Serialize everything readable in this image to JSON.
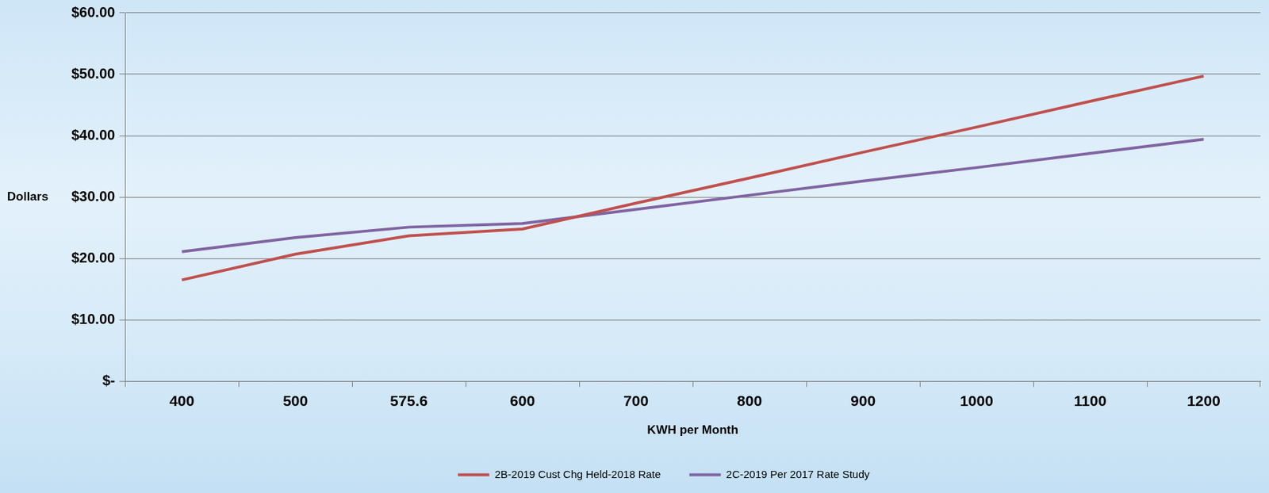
{
  "chart_data": {
    "type": "line",
    "x_label": "KWH per Month",
    "y_label": "Dollars",
    "categories": [
      "400",
      "500",
      "575.6",
      "600",
      "700",
      "800",
      "900",
      "1000",
      "1100",
      "1200"
    ],
    "series": [
      {
        "name": "2B-2019 Cust Chg Held-2018 Rate",
        "color": "#c0504d",
        "values": [
          16.5,
          20.7,
          23.7,
          24.8,
          29.0,
          33.1,
          37.3,
          41.4,
          45.6,
          49.7
        ]
      },
      {
        "name": "2C-2019 Per 2017 Rate Study",
        "color": "#8064a2",
        "values": [
          21.1,
          23.4,
          25.1,
          25.7,
          28.0,
          30.3,
          32.6,
          34.8,
          37.1,
          39.4
        ]
      }
    ],
    "ylim": [
      0,
      60
    ],
    "yticks": [
      {
        "value": 0,
        "label": "$-"
      },
      {
        "value": 10,
        "label": "$10.00"
      },
      {
        "value": 20,
        "label": "$20.00"
      },
      {
        "value": 30,
        "label": "$30.00"
      },
      {
        "value": 40,
        "label": "$40.00"
      },
      {
        "value": 50,
        "label": "$50.00"
      },
      {
        "value": 60,
        "label": "$60.00"
      }
    ],
    "grid": true,
    "legend": "bottom"
  }
}
